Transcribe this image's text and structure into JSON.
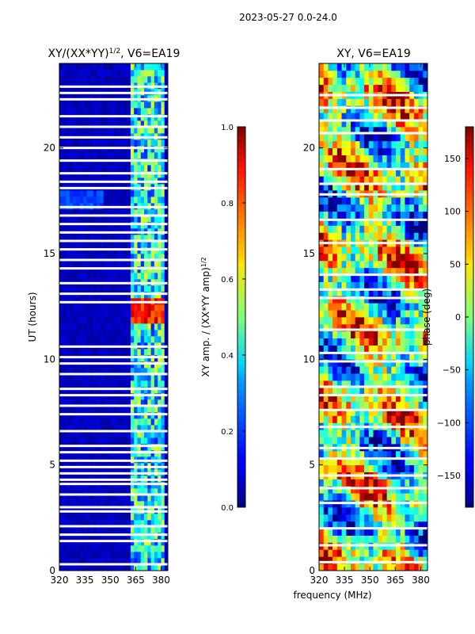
{
  "suptitle": "2023-05-27 0.0-24.0",
  "xlabel": "frequency (MHz)",
  "chart_data": [
    {
      "type": "heatmap",
      "title_main": "XY/(XX*YY)",
      "title_exp": "1/2",
      "title_suffix": ", V6=EA19",
      "ylabel": "UT (hours)",
      "xlim": [
        320,
        384
      ],
      "ylim": [
        0,
        24
      ],
      "xticks": [
        320,
        335,
        350,
        365,
        380
      ],
      "yticks": [
        0,
        5,
        10,
        15,
        20
      ],
      "colorbar": {
        "label_main": "XY amp. / (XX*YY amp)",
        "label_exp": "1/2",
        "range": [
          0.0,
          1.0
        ],
        "ticks": [
          "0.0",
          "0.2",
          "0.4",
          "0.6",
          "0.8",
          "1.0"
        ],
        "colormap": "jet"
      },
      "background_level": 0.05,
      "bright_band_mhz": [
        361,
        382
      ],
      "gaps_hours": [
        0.3,
        1.4,
        1.7,
        2.1,
        2.8,
        3.0,
        3.6,
        4.1,
        4.3,
        4.6,
        4.9,
        5.2,
        5.6,
        5.9,
        6.6,
        7.4,
        7.8,
        8.3,
        8.6,
        9.3,
        9.8,
        10.1,
        10.6,
        12.7,
        13.1,
        13.6,
        14.3,
        14.7,
        15.2,
        15.6,
        16.0,
        16.4,
        16.8,
        17.2,
        18.1,
        18.4,
        18.8,
        19.4,
        20.0,
        20.5,
        21.0,
        21.5,
        22.3,
        22.6,
        22.9
      ]
    },
    {
      "type": "heatmap",
      "title": "XY, V6=EA19",
      "xlim": [
        320,
        384
      ],
      "ylim": [
        0,
        24
      ],
      "xticks": [
        320,
        335,
        350,
        365,
        380
      ],
      "yticks": [
        0,
        5,
        10,
        15,
        20
      ],
      "colorbar": {
        "label": "phase (deg)",
        "range": [
          -180,
          180
        ],
        "ticks": [
          "150",
          "100",
          "50",
          "0",
          "−50",
          "−100",
          "−150"
        ],
        "tick_values": [
          150,
          100,
          50,
          0,
          -50,
          -100,
          -150
        ],
        "colormap": "jet"
      },
      "gaps_hours": [
        0.4,
        1.2,
        2.0,
        3.2,
        3.9,
        4.5,
        5.3,
        5.8,
        6.8,
        7.6,
        8.3,
        8.7,
        9.9,
        10.3,
        11.4,
        12.9,
        13.3,
        14.0,
        15.5,
        16.6,
        17.8,
        18.3,
        19.0,
        20.7,
        21.3,
        21.9,
        22.5
      ]
    }
  ]
}
